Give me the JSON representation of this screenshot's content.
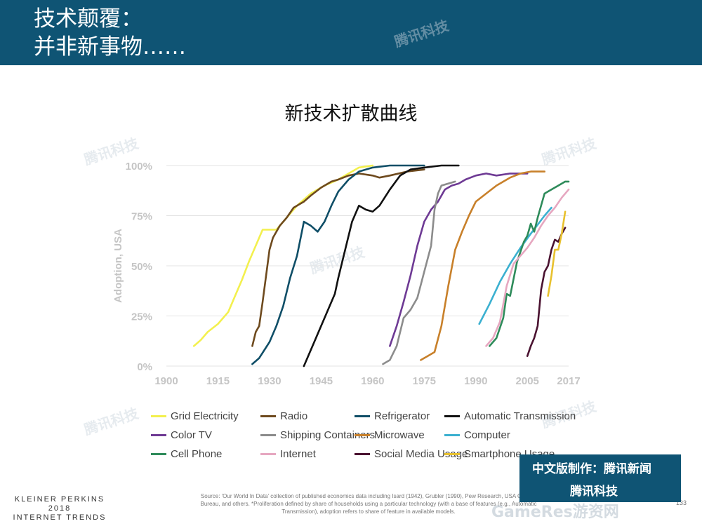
{
  "header": {
    "title_line1": "技术颠覆：",
    "title_line2": "并非新事物……"
  },
  "chart_title": "新技术扩散曲线",
  "watermark_text": "腾讯科技",
  "footer": {
    "brand_line1": "KLEINER PERKINS",
    "brand_line2": "2018",
    "brand_line3": "INTERNET TRENDS",
    "source": "Source: 'Our World In Data' collection of published economics data including Isard (1942), Grubler (1990), Pew Research, USA Census Bureau, and others. *Proliferation defined by share of households using a particular technology (with a base of features (e.g., Automatic Transmission), adoption refers to share of feature in available models.",
    "page_number": "133"
  },
  "badge": {
    "line1": "中文版制作：腾讯新闻",
    "line2": "腾讯科技"
  },
  "bottom_watermark": "GameRes游资网",
  "chart_data": {
    "type": "line",
    "ylabel": "Adoption, USA",
    "xlim": [
      1900,
      2017
    ],
    "ylim": [
      0,
      100
    ],
    "xticks": [
      1900,
      1915,
      1930,
      1945,
      1960,
      1975,
      1990,
      2005,
      2017
    ],
    "yticks": [
      0,
      25,
      50,
      75,
      100
    ],
    "ytick_labels": [
      "0%",
      "25%",
      "50%",
      "75%",
      "100%"
    ],
    "grid": true,
    "legend_position": "bottom",
    "series": [
      {
        "name": "Grid Electricity",
        "color": "#f3f04e",
        "points": [
          [
            1908,
            10
          ],
          [
            1910,
            13
          ],
          [
            1912,
            17
          ],
          [
            1915,
            21
          ],
          [
            1918,
            27
          ],
          [
            1920,
            35
          ],
          [
            1922,
            43
          ],
          [
            1924,
            52
          ],
          [
            1926,
            60
          ],
          [
            1928,
            68
          ],
          [
            1930,
            68
          ],
          [
            1932,
            68
          ],
          [
            1934,
            72
          ],
          [
            1936,
            76
          ],
          [
            1938,
            80
          ],
          [
            1940,
            83
          ],
          [
            1942,
            86
          ],
          [
            1944,
            88
          ],
          [
            1946,
            90
          ],
          [
            1950,
            93
          ],
          [
            1953,
            96
          ],
          [
            1956,
            99
          ],
          [
            1960,
            100
          ]
        ]
      },
      {
        "name": "Radio",
        "color": "#6e4a1e",
        "points": [
          [
            1925,
            10
          ],
          [
            1926,
            17
          ],
          [
            1927,
            20
          ],
          [
            1928,
            32
          ],
          [
            1929,
            45
          ],
          [
            1930,
            58
          ],
          [
            1931,
            64
          ],
          [
            1933,
            70
          ],
          [
            1935,
            74
          ],
          [
            1937,
            79
          ],
          [
            1940,
            82
          ],
          [
            1942,
            85
          ],
          [
            1945,
            89
          ],
          [
            1948,
            92
          ],
          [
            1950,
            93
          ],
          [
            1953,
            95
          ],
          [
            1956,
            96
          ],
          [
            1960,
            95
          ],
          [
            1962,
            94
          ],
          [
            1965,
            95
          ],
          [
            1970,
            97
          ],
          [
            1975,
            98
          ]
        ]
      },
      {
        "name": "Refrigerator",
        "color": "#0f4e67",
        "points": [
          [
            1925,
            1
          ],
          [
            1927,
            4
          ],
          [
            1930,
            12
          ],
          [
            1932,
            20
          ],
          [
            1934,
            30
          ],
          [
            1936,
            44
          ],
          [
            1938,
            55
          ],
          [
            1940,
            72
          ],
          [
            1942,
            70
          ],
          [
            1944,
            67
          ],
          [
            1946,
            72
          ],
          [
            1948,
            80
          ],
          [
            1950,
            87
          ],
          [
            1953,
            93
          ],
          [
            1956,
            97
          ],
          [
            1960,
            99
          ],
          [
            1965,
            100
          ],
          [
            1975,
            100
          ]
        ]
      },
      {
        "name": "Automatic Transmission",
        "color": "#111111",
        "points": [
          [
            1940,
            0
          ],
          [
            1943,
            12
          ],
          [
            1946,
            24
          ],
          [
            1949,
            36
          ],
          [
            1950,
            44
          ],
          [
            1952,
            58
          ],
          [
            1954,
            72
          ],
          [
            1956,
            80
          ],
          [
            1958,
            78
          ],
          [
            1960,
            77
          ],
          [
            1962,
            80
          ],
          [
            1965,
            88
          ],
          [
            1968,
            95
          ],
          [
            1971,
            98
          ],
          [
            1975,
            99
          ],
          [
            1980,
            100
          ],
          [
            1985,
            100
          ]
        ]
      },
      {
        "name": "Color TV",
        "color": "#6e3a94",
        "points": [
          [
            1965,
            10
          ],
          [
            1967,
            20
          ],
          [
            1969,
            32
          ],
          [
            1971,
            45
          ],
          [
            1973,
            60
          ],
          [
            1975,
            72
          ],
          [
            1977,
            78
          ],
          [
            1979,
            82
          ],
          [
            1981,
            88
          ],
          [
            1983,
            90
          ],
          [
            1985,
            91
          ],
          [
            1987,
            93
          ],
          [
            1990,
            95
          ],
          [
            1993,
            96
          ],
          [
            1996,
            95
          ],
          [
            2000,
            96
          ],
          [
            2005,
            96
          ]
        ]
      },
      {
        "name": "Shipping Containers",
        "color": "#8c8c8c",
        "points": [
          [
            1963,
            1
          ],
          [
            1965,
            3
          ],
          [
            1967,
            10
          ],
          [
            1969,
            24
          ],
          [
            1971,
            28
          ],
          [
            1973,
            34
          ],
          [
            1975,
            47
          ],
          [
            1977,
            60
          ],
          [
            1978,
            78
          ],
          [
            1979,
            86
          ],
          [
            1980,
            90
          ],
          [
            1982,
            91
          ],
          [
            1984,
            92
          ]
        ]
      },
      {
        "name": "Microwave",
        "color": "#c8802a",
        "points": [
          [
            1974,
            3
          ],
          [
            1976,
            5
          ],
          [
            1978,
            7
          ],
          [
            1980,
            20
          ],
          [
            1982,
            40
          ],
          [
            1984,
            58
          ],
          [
            1986,
            67
          ],
          [
            1988,
            75
          ],
          [
            1990,
            82
          ],
          [
            1993,
            86
          ],
          [
            1996,
            90
          ],
          [
            2000,
            94
          ],
          [
            2003,
            96
          ],
          [
            2006,
            97
          ],
          [
            2010,
            97
          ]
        ]
      },
      {
        "name": "Computer",
        "color": "#3bb0d0",
        "points": [
          [
            1991,
            21
          ],
          [
            1994,
            31
          ],
          [
            1997,
            42
          ],
          [
            2000,
            51
          ],
          [
            2003,
            59
          ],
          [
            2006,
            66
          ],
          [
            2010,
            75
          ],
          [
            2012,
            79
          ]
        ]
      },
      {
        "name": "Cell Phone",
        "color": "#2e8b5a",
        "points": [
          [
            1994,
            10
          ],
          [
            1996,
            14
          ],
          [
            1998,
            24
          ],
          [
            1999,
            36
          ],
          [
            2000,
            35
          ],
          [
            2002,
            52
          ],
          [
            2004,
            62
          ],
          [
            2005,
            65
          ],
          [
            2006,
            71
          ],
          [
            2007,
            67
          ],
          [
            2008,
            74
          ],
          [
            2009,
            80
          ],
          [
            2010,
            86
          ],
          [
            2012,
            88
          ],
          [
            2014,
            90
          ],
          [
            2016,
            92
          ],
          [
            2017,
            92
          ]
        ]
      },
      {
        "name": "Internet",
        "color": "#e6a7c0",
        "points": [
          [
            1993,
            10
          ],
          [
            1995,
            14
          ],
          [
            1997,
            22
          ],
          [
            1999,
            40
          ],
          [
            2001,
            51
          ],
          [
            2003,
            55
          ],
          [
            2005,
            59
          ],
          [
            2007,
            64
          ],
          [
            2009,
            70
          ],
          [
            2011,
            75
          ],
          [
            2013,
            79
          ],
          [
            2015,
            84
          ],
          [
            2017,
            88
          ]
        ]
      },
      {
        "name": "Social Media Usage",
        "color": "#4a1230",
        "points": [
          [
            2005,
            5
          ],
          [
            2006,
            10
          ],
          [
            2007,
            14
          ],
          [
            2008,
            20
          ],
          [
            2009,
            38
          ],
          [
            2010,
            47
          ],
          [
            2011,
            50
          ],
          [
            2012,
            58
          ],
          [
            2013,
            63
          ],
          [
            2014,
            62
          ],
          [
            2015,
            66
          ],
          [
            2016,
            69
          ]
        ]
      },
      {
        "name": "Smartphone Usage",
        "color": "#e8c12e",
        "points": [
          [
            2011,
            35
          ],
          [
            2012,
            45
          ],
          [
            2013,
            58
          ],
          [
            2014,
            58
          ],
          [
            2015,
            66
          ],
          [
            2016,
            77
          ]
        ]
      }
    ]
  }
}
